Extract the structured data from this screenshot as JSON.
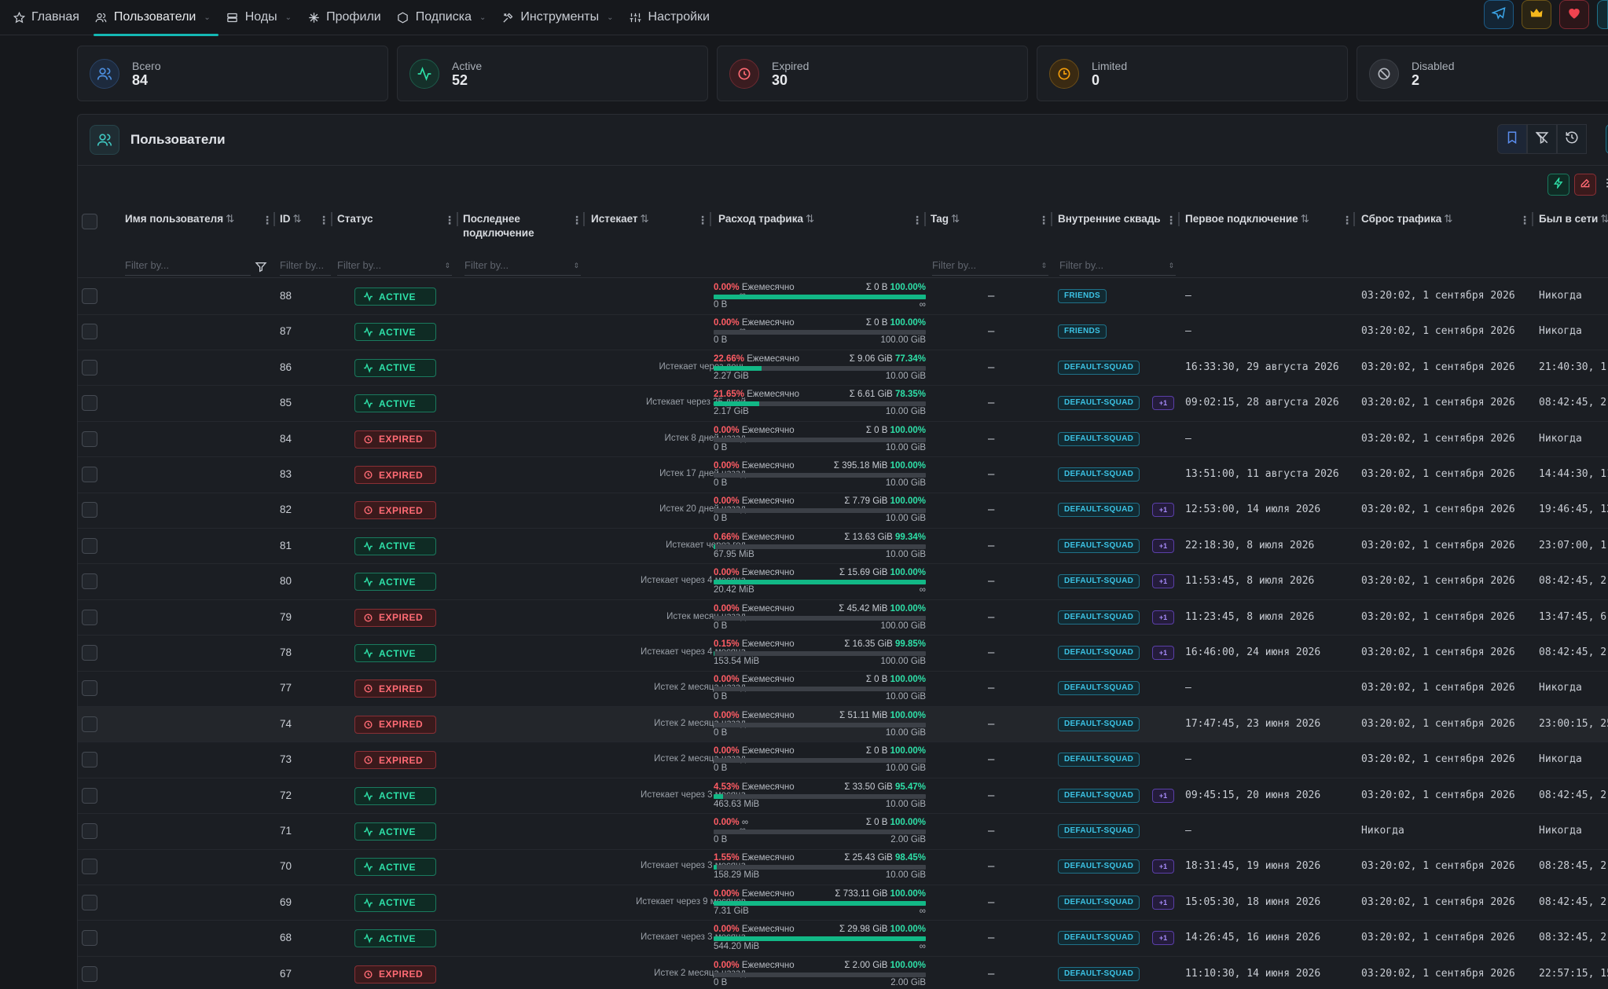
{
  "nav": {
    "items": [
      {
        "label": "Главная",
        "icon": "star-icon"
      },
      {
        "label": "Пользователи",
        "icon": "users-icon"
      },
      {
        "label": "Ноды",
        "icon": "server-icon"
      },
      {
        "label": "Профили",
        "icon": "profiles-icon"
      },
      {
        "label": "Подписка",
        "icon": "subscription-icon"
      },
      {
        "label": "Инструменты",
        "icon": "tools-icon"
      },
      {
        "label": "Настройки",
        "icon": "settings-icon"
      }
    ],
    "active_index": 1
  },
  "colors": {
    "accent": "#14b8b4",
    "active": "#2ee0a8",
    "expired": "#ff6b74",
    "limited": "#f59e0b",
    "squad": "#3cc3e5"
  },
  "stats": [
    {
      "label": "Всего",
      "value": "84",
      "icon": "users-icon"
    },
    {
      "label": "Active",
      "value": "52",
      "icon": "activity-icon"
    },
    {
      "label": "Expired",
      "value": "30",
      "icon": "clock-alert-icon"
    },
    {
      "label": "Limited",
      "value": "0",
      "icon": "limited-icon"
    },
    {
      "label": "Disabled",
      "value": "2",
      "icon": "disabled-icon"
    }
  ],
  "panel": {
    "title": "Пользователи"
  },
  "columns": {
    "username": "Имя пользователя",
    "id": "ID",
    "status": "Статус",
    "last_connect": "Последнее подключение",
    "expires": "Истекает",
    "traffic": "Расход трафика",
    "tag": "Tag",
    "squads": "Внутренние сквады",
    "first_connect": "Первое подключение",
    "reset": "Сброс трафика",
    "online": "Был в сети"
  },
  "filter_placeholder": "Filter by...",
  "rows": [
    {
      "id": "88",
      "status": "ACTIVE",
      "expires": "∞",
      "pct": "0.00%",
      "period": "Ежемесячно",
      "sum": "Σ 0 B",
      "sum_pct": "100.00%",
      "fill": 1.0,
      "used": "0 B",
      "limit": "∞",
      "tag": "–",
      "squad": "FRIENDS",
      "plus": "",
      "first": "–",
      "reset": "03:20:02, 1 сентября 2026",
      "online": "Никогда"
    },
    {
      "id": "87",
      "status": "ACTIVE",
      "expires": "∞",
      "pct": "0.00%",
      "period": "Ежемесячно",
      "sum": "Σ 0 B",
      "sum_pct": "100.00%",
      "fill": 0,
      "used": "0 B",
      "limit": "100.00 GiB",
      "tag": "–",
      "squad": "FRIENDS",
      "plus": "",
      "first": "–",
      "reset": "03:20:02, 1 сентября 2026",
      "online": "Никогда"
    },
    {
      "id": "86",
      "status": "ACTIVE",
      "expires": "Истекает через день",
      "pct": "22.66%",
      "period": "Ежемесячно",
      "sum": "Σ 9.06 GiB",
      "sum_pct": "77.34%",
      "fill": 0.2266,
      "used": "2.27 GiB",
      "limit": "10.00 GiB",
      "tag": "–",
      "squad": "DEFAULT-SQUAD",
      "plus": "",
      "first": "16:33:30, 29 августа 2026",
      "reset": "03:20:02, 1 сентября 2026",
      "online": "21:40:30, 1"
    },
    {
      "id": "85",
      "status": "ACTIVE",
      "expires": "Истекает через 25 дней",
      "pct": "21.65%",
      "period": "Ежемесячно",
      "sum": "Σ 6.61 GiB",
      "sum_pct": "78.35%",
      "fill": 0.2165,
      "used": "2.17 GiB",
      "limit": "10.00 GiB",
      "tag": "–",
      "squad": "DEFAULT-SQUAD",
      "plus": "+1",
      "first": "09:02:15, 28 августа 2026",
      "reset": "03:20:02, 1 сентября 2026",
      "online": "08:42:45, 2"
    },
    {
      "id": "84",
      "status": "EXPIRED",
      "expires": "Истек 8 дней назад",
      "pct": "0.00%",
      "period": "Ежемесячно",
      "sum": "Σ 0 B",
      "sum_pct": "100.00%",
      "fill": 0,
      "used": "0 B",
      "limit": "10.00 GiB",
      "tag": "–",
      "squad": "DEFAULT-SQUAD",
      "plus": "",
      "first": "–",
      "reset": "03:20:02, 1 сентября 2026",
      "online": "Никогда"
    },
    {
      "id": "83",
      "status": "EXPIRED",
      "expires": "Истек 17 дней назад",
      "pct": "0.00%",
      "period": "Ежемесячно",
      "sum": "Σ 395.18 MiB",
      "sum_pct": "100.00%",
      "fill": 0,
      "used": "0 B",
      "limit": "10.00 GiB",
      "tag": "–",
      "squad": "DEFAULT-SQUAD",
      "plus": "",
      "first": "13:51:00, 11 августа 2026",
      "reset": "03:20:02, 1 сентября 2026",
      "online": "14:44:30, 11"
    },
    {
      "id": "82",
      "status": "EXPIRED",
      "expires": "Истек 20 дней назад",
      "pct": "0.00%",
      "period": "Ежемесячно",
      "sum": "Σ 7.79 GiB",
      "sum_pct": "100.00%",
      "fill": 0,
      "used": "0 B",
      "limit": "10.00 GiB",
      "tag": "–",
      "squad": "DEFAULT-SQUAD",
      "plus": "+1",
      "first": "12:53:00, 14 июля 2026",
      "reset": "03:20:02, 1 сентября 2026",
      "online": "19:46:45, 12"
    },
    {
      "id": "81",
      "status": "ACTIVE",
      "expires": "Истекает через год",
      "pct": "0.66%",
      "period": "Ежемесячно",
      "sum": "Σ 13.63 GiB",
      "sum_pct": "99.34%",
      "fill": 0.0066,
      "used": "67.95 MiB",
      "limit": "10.00 GiB",
      "tag": "–",
      "squad": "DEFAULT-SQUAD",
      "plus": "+1",
      "first": "22:18:30, 8 июля 2026",
      "reset": "03:20:02, 1 сентября 2026",
      "online": "23:07:00, 1"
    },
    {
      "id": "80",
      "status": "ACTIVE",
      "expires": "Истекает через 4 месяца",
      "pct": "0.00%",
      "period": "Ежемесячно",
      "sum": "Σ 15.69 GiB",
      "sum_pct": "100.00%",
      "fill": 1.0,
      "used": "20.42 MiB",
      "limit": "∞",
      "tag": "–",
      "squad": "DEFAULT-SQUAD",
      "plus": "+1",
      "first": "11:53:45, 8 июля 2026",
      "reset": "03:20:02, 1 сентября 2026",
      "online": "08:42:45, 2"
    },
    {
      "id": "79",
      "status": "EXPIRED",
      "expires": "Истек месяц назад",
      "pct": "0.00%",
      "period": "Ежемесячно",
      "sum": "Σ 45.42 MiB",
      "sum_pct": "100.00%",
      "fill": 0,
      "used": "0 B",
      "limit": "100.00 GiB",
      "tag": "–",
      "squad": "DEFAULT-SQUAD",
      "plus": "+1",
      "first": "11:23:45, 8 июля 2026",
      "reset": "03:20:02, 1 сентября 2026",
      "online": "13:47:45, 6"
    },
    {
      "id": "78",
      "status": "ACTIVE",
      "expires": "Истекает через 4 месяца",
      "pct": "0.15%",
      "period": "Ежемесячно",
      "sum": "Σ 16.35 GiB",
      "sum_pct": "99.85%",
      "fill": 0.0015,
      "used": "153.54 MiB",
      "limit": "100.00 GiB",
      "tag": "–",
      "squad": "DEFAULT-SQUAD",
      "plus": "+1",
      "first": "16:46:00, 24 июня 2026",
      "reset": "03:20:02, 1 сентября 2026",
      "online": "08:42:45, 2"
    },
    {
      "id": "77",
      "status": "EXPIRED",
      "expires": "Истек 2 месяца назад",
      "pct": "0.00%",
      "period": "Ежемесячно",
      "sum": "Σ 0 B",
      "sum_pct": "100.00%",
      "fill": 0,
      "used": "0 B",
      "limit": "10.00 GiB",
      "tag": "–",
      "squad": "DEFAULT-SQUAD",
      "plus": "",
      "first": "–",
      "reset": "03:20:02, 1 сентября 2026",
      "online": "Никогда"
    },
    {
      "id": "74",
      "status": "EXPIRED",
      "expires": "Истек 2 месяца назад",
      "pct": "0.00%",
      "period": "Ежемесячно",
      "sum": "Σ 51.11 MiB",
      "sum_pct": "100.00%",
      "fill": 0,
      "used": "0 B",
      "limit": "10.00 GiB",
      "tag": "–",
      "squad": "DEFAULT-SQUAD",
      "plus": "",
      "first": "17:47:45, 23 июня 2026",
      "reset": "03:20:02, 1 сентября 2026",
      "online": "23:00:15, 25",
      "highlight": true
    },
    {
      "id": "73",
      "status": "EXPIRED",
      "expires": "Истек 2 месяца назад",
      "pct": "0.00%",
      "period": "Ежемесячно",
      "sum": "Σ 0 B",
      "sum_pct": "100.00%",
      "fill": 0,
      "used": "0 B",
      "limit": "10.00 GiB",
      "tag": "–",
      "squad": "DEFAULT-SQUAD",
      "plus": "",
      "first": "–",
      "reset": "03:20:02, 1 сентября 2026",
      "online": "Никогда"
    },
    {
      "id": "72",
      "status": "ACTIVE",
      "expires": "Истекает через 3 месяца",
      "pct": "4.53%",
      "period": "Ежемесячно",
      "sum": "Σ 33.50 GiB",
      "sum_pct": "95.47%",
      "fill": 0.0453,
      "used": "463.63 MiB",
      "limit": "10.00 GiB",
      "tag": "–",
      "squad": "DEFAULT-SQUAD",
      "plus": "+1",
      "first": "09:45:15, 20 июня 2026",
      "reset": "03:20:02, 1 сентября 2026",
      "online": "08:42:45, 2"
    },
    {
      "id": "71",
      "status": "ACTIVE",
      "expires": "∞",
      "pct": "0.00%",
      "period": "∞",
      "sum": "Σ 0 B",
      "sum_pct": "100.00%",
      "fill": 0,
      "used": "0 B",
      "limit": "2.00 GiB",
      "tag": "–",
      "squad": "DEFAULT-SQUAD",
      "plus": "",
      "first": "–",
      "reset": "Никогда",
      "online": "Никогда"
    },
    {
      "id": "70",
      "status": "ACTIVE",
      "expires": "Истекает через 3 месяца",
      "pct": "1.55%",
      "period": "Ежемесячно",
      "sum": "Σ 25.43 GiB",
      "sum_pct": "98.45%",
      "fill": 0.0155,
      "used": "158.29 MiB",
      "limit": "10.00 GiB",
      "tag": "–",
      "squad": "DEFAULT-SQUAD",
      "plus": "+1",
      "first": "18:31:45, 19 июня 2026",
      "reset": "03:20:02, 1 сентября 2026",
      "online": "08:28:45, 2"
    },
    {
      "id": "69",
      "status": "ACTIVE",
      "expires": "Истекает через 9 месяцев",
      "pct": "0.00%",
      "period": "Ежемесячно",
      "sum": "Σ 733.11 GiB",
      "sum_pct": "100.00%",
      "fill": 1.0,
      "used": "7.31 GiB",
      "limit": "∞",
      "tag": "–",
      "squad": "DEFAULT-SQUAD",
      "plus": "+1",
      "first": "15:05:30, 18 июня 2026",
      "reset": "03:20:02, 1 сентября 2026",
      "online": "08:42:45, 2"
    },
    {
      "id": "68",
      "status": "ACTIVE",
      "expires": "Истекает через 3 месяца",
      "pct": "0.00%",
      "period": "Ежемесячно",
      "sum": "Σ 29.98 GiB",
      "sum_pct": "100.00%",
      "fill": 1.0,
      "used": "544.20 MiB",
      "limit": "∞",
      "tag": "–",
      "squad": "DEFAULT-SQUAD",
      "plus": "+1",
      "first": "14:26:45, 16 июня 2026",
      "reset": "03:20:02, 1 сентября 2026",
      "online": "08:32:45, 2"
    },
    {
      "id": "67",
      "status": "EXPIRED",
      "expires": "Истек 2 месяца назад",
      "pct": "0.00%",
      "period": "Ежемесячно",
      "sum": "Σ 2.00 GiB",
      "sum_pct": "100.00%",
      "fill": 0,
      "used": "0 B",
      "limit": "2.00 GiB",
      "tag": "–",
      "squad": "DEFAULT-SQUAD",
      "plus": "",
      "first": "11:10:30, 14 июня 2026",
      "reset": "03:20:02, 1 сентября 2026",
      "online": "22:57:15, 15"
    }
  ]
}
